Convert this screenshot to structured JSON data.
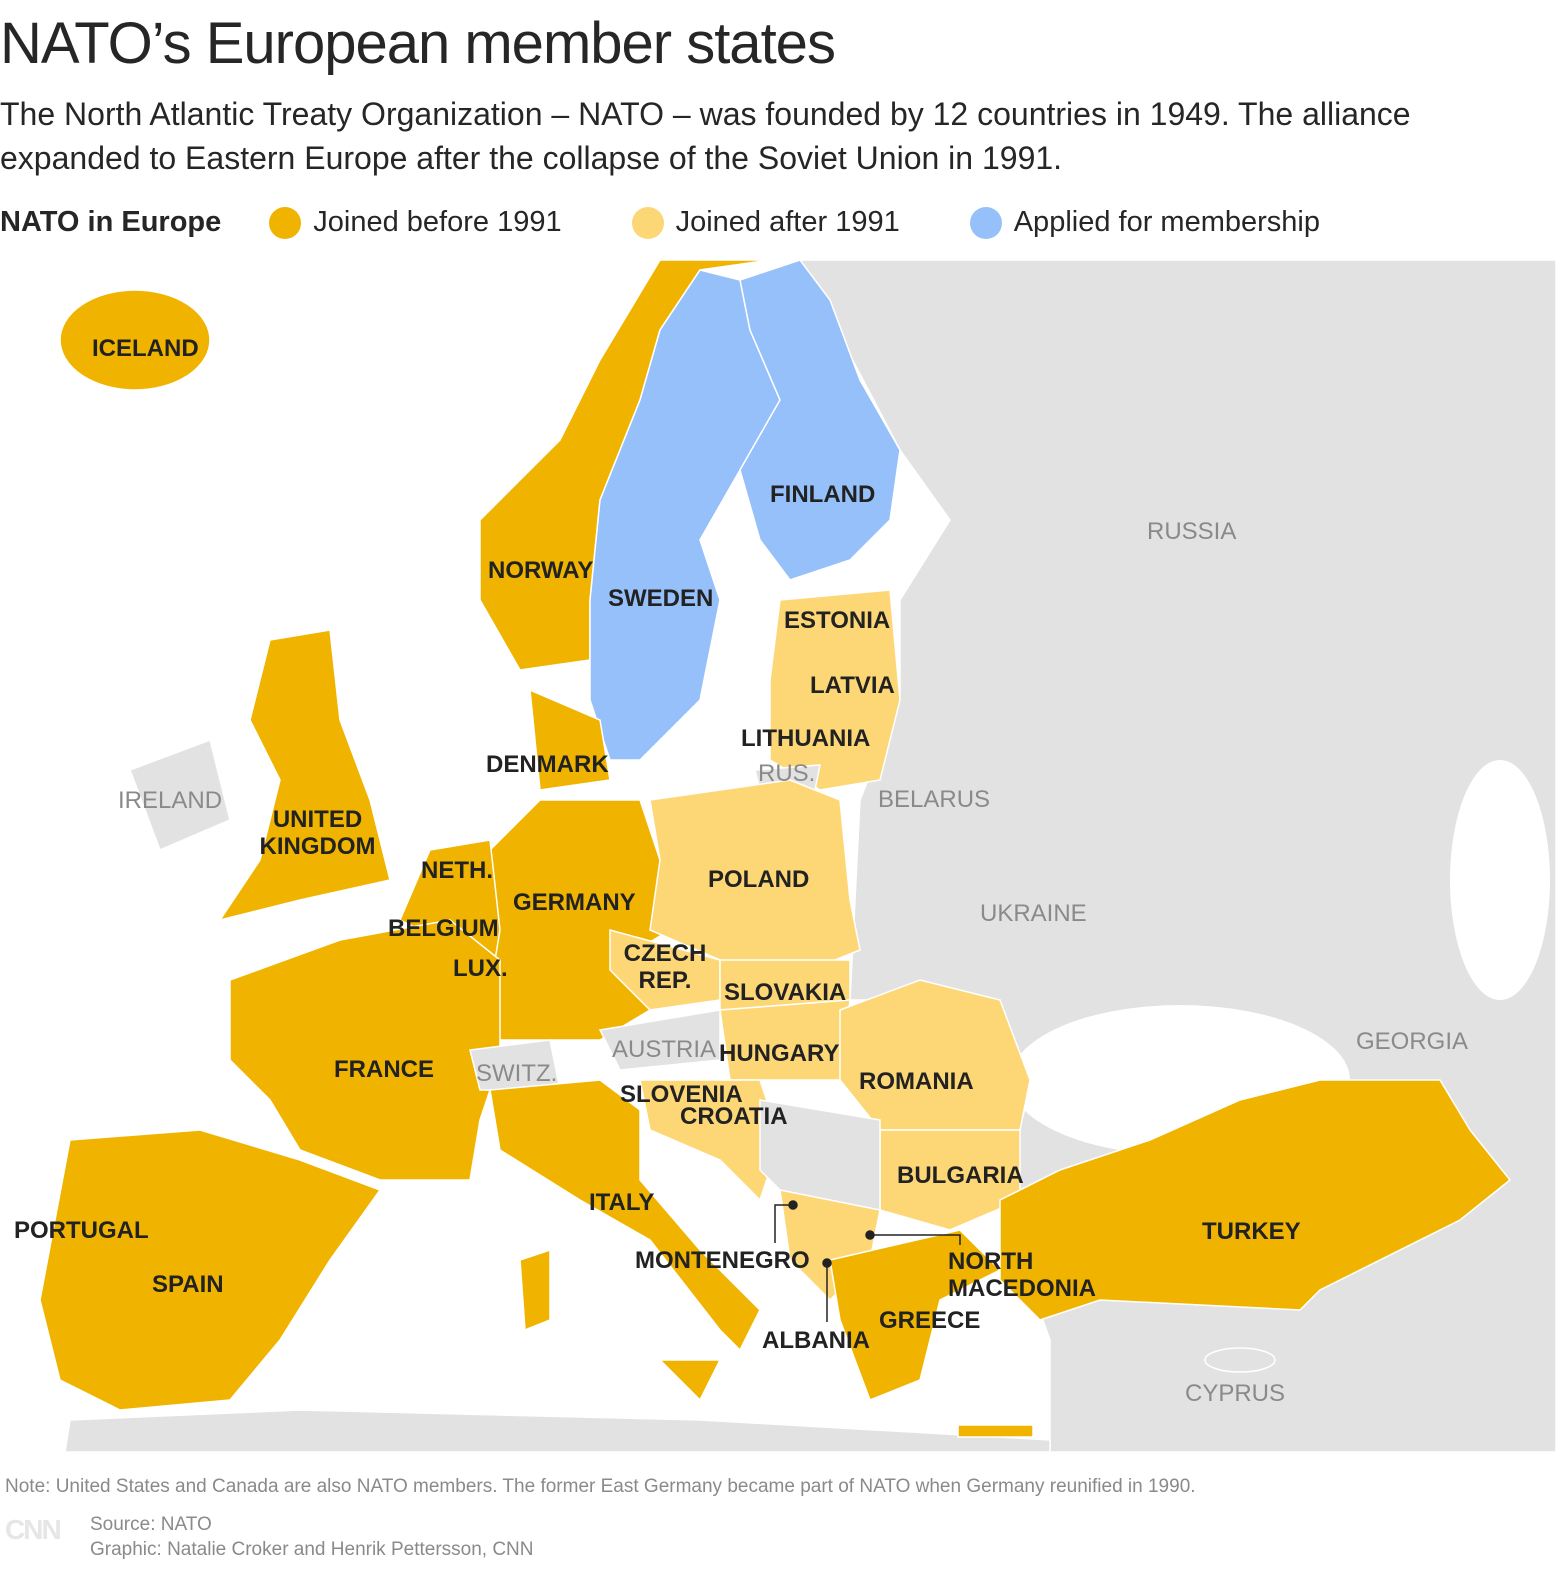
{
  "title": "NATO’s European member states",
  "subtitle": "The North Atlantic Treaty Organization – NATO – was founded by 12 countries in 1949. The alliance expanded to Eastern Europe after the collapse of the Soviet Union in 1991.",
  "legend": {
    "heading": "NATO in Europe",
    "items": [
      {
        "label": "Joined before 1991",
        "color": "#F0B400"
      },
      {
        "label": "Joined after 1991",
        "color": "#FDD775"
      },
      {
        "label": "Applied for membership",
        "color": "#96C0FA"
      }
    ]
  },
  "colors": {
    "land": "#E2E2E2",
    "water": "#FFFFFF"
  },
  "labels": {
    "iceland": "ICELAND",
    "norway": "NORWAY",
    "sweden": "SWEDEN",
    "finland": "FINLAND",
    "russia": "RUSSIA",
    "estonia": "ESTONIA",
    "latvia": "LATVIA",
    "lithuania": "LITHUANIA",
    "rus": "RUS.",
    "belarus": "BELARUS",
    "denmark": "DENMARK",
    "ireland": "IRELAND",
    "uk": "UNITED KINGDOM",
    "neth": "NETH.",
    "germany": "GERMANY",
    "poland": "POLAND",
    "ukraine": "UKRAINE",
    "belgium": "BELGIUM",
    "lux": "LUX.",
    "czech": "CZECH REP.",
    "slovakia": "SLOVAKIA",
    "austria": "AUSTRIA",
    "hungary": "HUNGARY",
    "france": "FRANCE",
    "switz": "SWITZ.",
    "romania": "ROMANIA",
    "georgia": "GEORGIA",
    "slovenia": "SLOVENIA",
    "croatia": "CROATIA",
    "bulgaria": "BULGARIA",
    "italy": "ITALY",
    "portugal": "PORTUGAL",
    "spain": "SPAIN",
    "montenegro": "MONTENEGRO",
    "north_macedonia": "NORTH MACEDONIA",
    "turkey": "TURKEY",
    "greece": "GREECE",
    "albania": "ALBANIA",
    "cyprus": "CYPRUS"
  },
  "note": "Note: United States and Canada are also NATO members. The former East Germany became part of NATO when Germany reunified in 1990.",
  "source": "Source: NATO",
  "credit": "Graphic: Natalie Croker and Henrik Pettersson, CNN",
  "logo": "CNN"
}
